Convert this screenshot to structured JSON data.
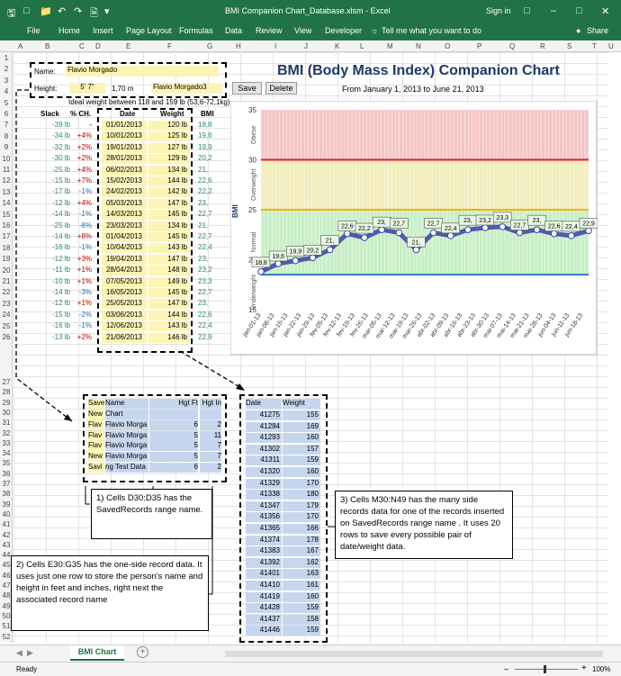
{
  "titlebar": {
    "title": "BMI Companion Chart_Database.xlsm - Excel",
    "signin": "Sign in"
  },
  "ribbon": {
    "tabs": [
      "File",
      "Home",
      "Insert",
      "Page Layout",
      "Formulas",
      "Data",
      "Review",
      "View",
      "Developer"
    ],
    "tellme": "Tell me what you want to do",
    "share": "Share"
  },
  "columns": [
    "A",
    "B",
    "C",
    "D",
    "E",
    "F",
    "G",
    "H",
    "I",
    "J",
    "K",
    "L",
    "M",
    "N",
    "O",
    "P",
    "Q",
    "R",
    "S",
    "T",
    "U",
    "V"
  ],
  "rows_top": [
    "1",
    "2",
    "3",
    "4",
    "5",
    "6",
    "7",
    "8",
    "9",
    "10",
    "11",
    "12",
    "13",
    "14",
    "15",
    "16",
    "17",
    "18",
    "19",
    "20",
    "21",
    "22",
    "23",
    "24",
    "25",
    "26"
  ],
  "rows_bottom": [
    "27",
    "28",
    "29",
    "30",
    "31",
    "32",
    "33",
    "34",
    "35",
    "36",
    "37",
    "38",
    "39",
    "40",
    "41",
    "42",
    "43",
    "44",
    "45",
    "46",
    "47",
    "48",
    "49",
    "50",
    "51",
    "52"
  ],
  "form": {
    "name_label": "Name:",
    "name_value": "Flavio Morgado",
    "height_label": "Height:",
    "height_ft": "5' 7\"",
    "height_m": "1,70 m",
    "record": "Flavio Morgado3",
    "ideal": "Ideal weight between 118 and 159 lb (53,6-72,1kg)"
  },
  "buttons": {
    "save": "Save",
    "delete": "Delete"
  },
  "chart_title": "BMI (Body Mass Index) Companion Chart",
  "chart_from": "From  January 1, 2013  to  June 21, 2013",
  "table_headers": {
    "slack": "Slack",
    "pch": "% CH.",
    "date": "Date",
    "weight": "Weight",
    "bmi": "BMI"
  },
  "table": [
    [
      "-39 lb",
      "-",
      "01/01/2013",
      "120 lb",
      "18,8"
    ],
    [
      "-34 lb",
      "+4%",
      "10/01/2013",
      "125 lb",
      "19,6"
    ],
    [
      "-32 lb",
      "+2%",
      "19/01/2013",
      "127 lb",
      "19,9"
    ],
    [
      "-30 lb",
      "+2%",
      "28/01/2013",
      "129 lb",
      "20,2"
    ],
    [
      "-25 lb",
      "+4%",
      "06/02/2013",
      "134 lb",
      "21,"
    ],
    [
      "-15 lb",
      "+7%",
      "15/02/2013",
      "144 lb",
      "22,6"
    ],
    [
      "-17 lb",
      "-1%",
      "24/02/2013",
      "142 lb",
      "22,2"
    ],
    [
      "-12 lb",
      "+4%",
      "05/03/2013",
      "147 lb",
      "23,"
    ],
    [
      "-14 lb",
      "-1%",
      "14/03/2013",
      "145 lb",
      "22,7"
    ],
    [
      "-25 lb",
      "-8%",
      "23/03/2013",
      "134 lb",
      "21,"
    ],
    [
      "-14 lb",
      "+8%",
      "01/04/2013",
      "145 lb",
      "22,7"
    ],
    [
      "-16 lb",
      "-1%",
      "10/04/2013",
      "143 lb",
      "22,4"
    ],
    [
      "-12 lb",
      "+3%",
      "19/04/2013",
      "147 lb",
      "23,"
    ],
    [
      "-11 lb",
      "+1%",
      "28/04/2013",
      "148 lb",
      "23,2"
    ],
    [
      "-10 lb",
      "+1%",
      "07/05/2013",
      "149 lb",
      "23,3"
    ],
    [
      "-14 lb",
      "-3%",
      "16/05/2013",
      "145 lb",
      "22,7"
    ],
    [
      "-12 lb",
      "+1%",
      "25/05/2013",
      "147 lb",
      "23,"
    ],
    [
      "-15 lb",
      "-2%",
      "03/06/2013",
      "144 lb",
      "22,6"
    ],
    [
      "-16 lb",
      "-1%",
      "12/06/2013",
      "143 lb",
      "22,4"
    ],
    [
      "-13 lb",
      "+2%",
      "21/06/2013",
      "146 lb",
      "22,9"
    ]
  ],
  "saved_headers": [
    "Save",
    "Name",
    "Hgt Ft",
    "Hgt In"
  ],
  "saved": [
    [
      "New",
      "Chart",
      "",
      ""
    ],
    [
      "Flav",
      "Flavio Morga",
      "6",
      "2"
    ],
    [
      "Flav",
      "Flavio Morga",
      "5",
      "11"
    ],
    [
      "Flav",
      "Flavio Morga",
      "5",
      "7"
    ],
    [
      "New",
      "Flavio Morga",
      "5",
      "7"
    ],
    [
      "Savi",
      "ng Test Data",
      "6",
      "2"
    ]
  ],
  "side_headers": [
    "Date",
    "Weight"
  ],
  "side": [
    [
      "41275",
      "155"
    ],
    [
      "41284",
      "169"
    ],
    [
      "41293",
      "160"
    ],
    [
      "41302",
      "157"
    ],
    [
      "41311",
      "159"
    ],
    [
      "41320",
      "160"
    ],
    [
      "41329",
      "170"
    ],
    [
      "41338",
      "180"
    ],
    [
      "41347",
      "179"
    ],
    [
      "41356",
      "170"
    ],
    [
      "41365",
      "166"
    ],
    [
      "41374",
      "178"
    ],
    [
      "41383",
      "167"
    ],
    [
      "41392",
      "162"
    ],
    [
      "41401",
      "163"
    ],
    [
      "41410",
      "161"
    ],
    [
      "41419",
      "160"
    ],
    [
      "41428",
      "159"
    ],
    [
      "41437",
      "158"
    ],
    [
      "41446",
      "159"
    ]
  ],
  "callouts": {
    "c1": "1) Cells D30:D35 has the SavedRecords range name.",
    "c2": "2) Cells E30:G35 has the one-side record data. It uses just one row to store the person's name and height in feet and inches, right next the associated record name",
    "c3": "3) Cells M30:N49 has the many side records  data for one of the records inserted on SavedRecords range name . It uses 20 rows to save every possible pair of date/weight data."
  },
  "sheet_tab": "BMI Chart",
  "status": {
    "ready": "Ready",
    "zoom": "100%"
  },
  "chart_data": {
    "type": "line",
    "ylabel": "BMI",
    "ylim": [
      15,
      35
    ],
    "yticks": [
      "15",
      "20",
      "25",
      "30",
      "35"
    ],
    "zones": [
      {
        "name": "Obese",
        "from": 30,
        "to": 35,
        "color": "#f4c6c6"
      },
      {
        "name": "Overweight",
        "from": 25,
        "to": 30,
        "color": "#f3ecbd"
      },
      {
        "name": "Normal",
        "from": 18.5,
        "to": 25,
        "color": "#c8efc6"
      },
      {
        "name": "Underweight",
        "from": 15,
        "to": 18.5,
        "color": "#ffffff"
      }
    ],
    "x": [
      "jan-01-13",
      "jan-08-13",
      "jan-15-13",
      "jan-22-13",
      "jan-29-13",
      "fev-05-13",
      "fev-12-13",
      "fev-19-13",
      "fev-26-13",
      "mar-05-13",
      "mar-12-13",
      "mar-19-13",
      "mar-26-13",
      "abr-02-13",
      "abr-09-13",
      "abr-16-13",
      "abr-23-13",
      "abr-30-13",
      "mai-07-13",
      "mai-14-13",
      "mai-21-13",
      "mai-28-13",
      "jun-04-13",
      "jun-11-13",
      "jun-18-13"
    ],
    "points": [
      {
        "day": 0,
        "bmi": 18.8,
        "label": "18,8"
      },
      {
        "day": 9,
        "bmi": 19.6,
        "label": "19,6"
      },
      {
        "day": 18,
        "bmi": 19.9,
        "label": "19,9"
      },
      {
        "day": 27,
        "bmi": 20.2,
        "label": "20,2"
      },
      {
        "day": 36,
        "bmi": 21.0,
        "label": "21,"
      },
      {
        "day": 45,
        "bmi": 22.6,
        "label": "22,6"
      },
      {
        "day": 54,
        "bmi": 22.2,
        "label": "22,2"
      },
      {
        "day": 63,
        "bmi": 23.0,
        "label": "23,"
      },
      {
        "day": 72,
        "bmi": 22.7,
        "label": "22,7"
      },
      {
        "day": 81,
        "bmi": 21.0,
        "label": "21,"
      },
      {
        "day": 90,
        "bmi": 22.7,
        "label": "22,7"
      },
      {
        "day": 99,
        "bmi": 22.4,
        "label": "22,4"
      },
      {
        "day": 108,
        "bmi": 23.0,
        "label": "23,"
      },
      {
        "day": 117,
        "bmi": 23.2,
        "label": "23,2"
      },
      {
        "day": 126,
        "bmi": 23.3,
        "label": "23,3"
      },
      {
        "day": 135,
        "bmi": 22.7,
        "label": "22,7"
      },
      {
        "day": 144,
        "bmi": 23.0,
        "label": "23,"
      },
      {
        "day": 153,
        "bmi": 22.6,
        "label": "22,6"
      },
      {
        "day": 162,
        "bmi": 22.4,
        "label": "22,4"
      },
      {
        "day": 171,
        "bmi": 22.9,
        "label": "22,9"
      }
    ],
    "lines": [
      {
        "bmi": 30,
        "color": "#e02020"
      },
      {
        "bmi": 25,
        "color": "#f0b400"
      },
      {
        "bmi": 18.5,
        "color": "#2a7ad0"
      }
    ],
    "zone_labels": [
      "Obese",
      "Overweight",
      "Normal",
      "Underweight"
    ],
    "series_color": "#3b3fa8",
    "grid": true
  }
}
